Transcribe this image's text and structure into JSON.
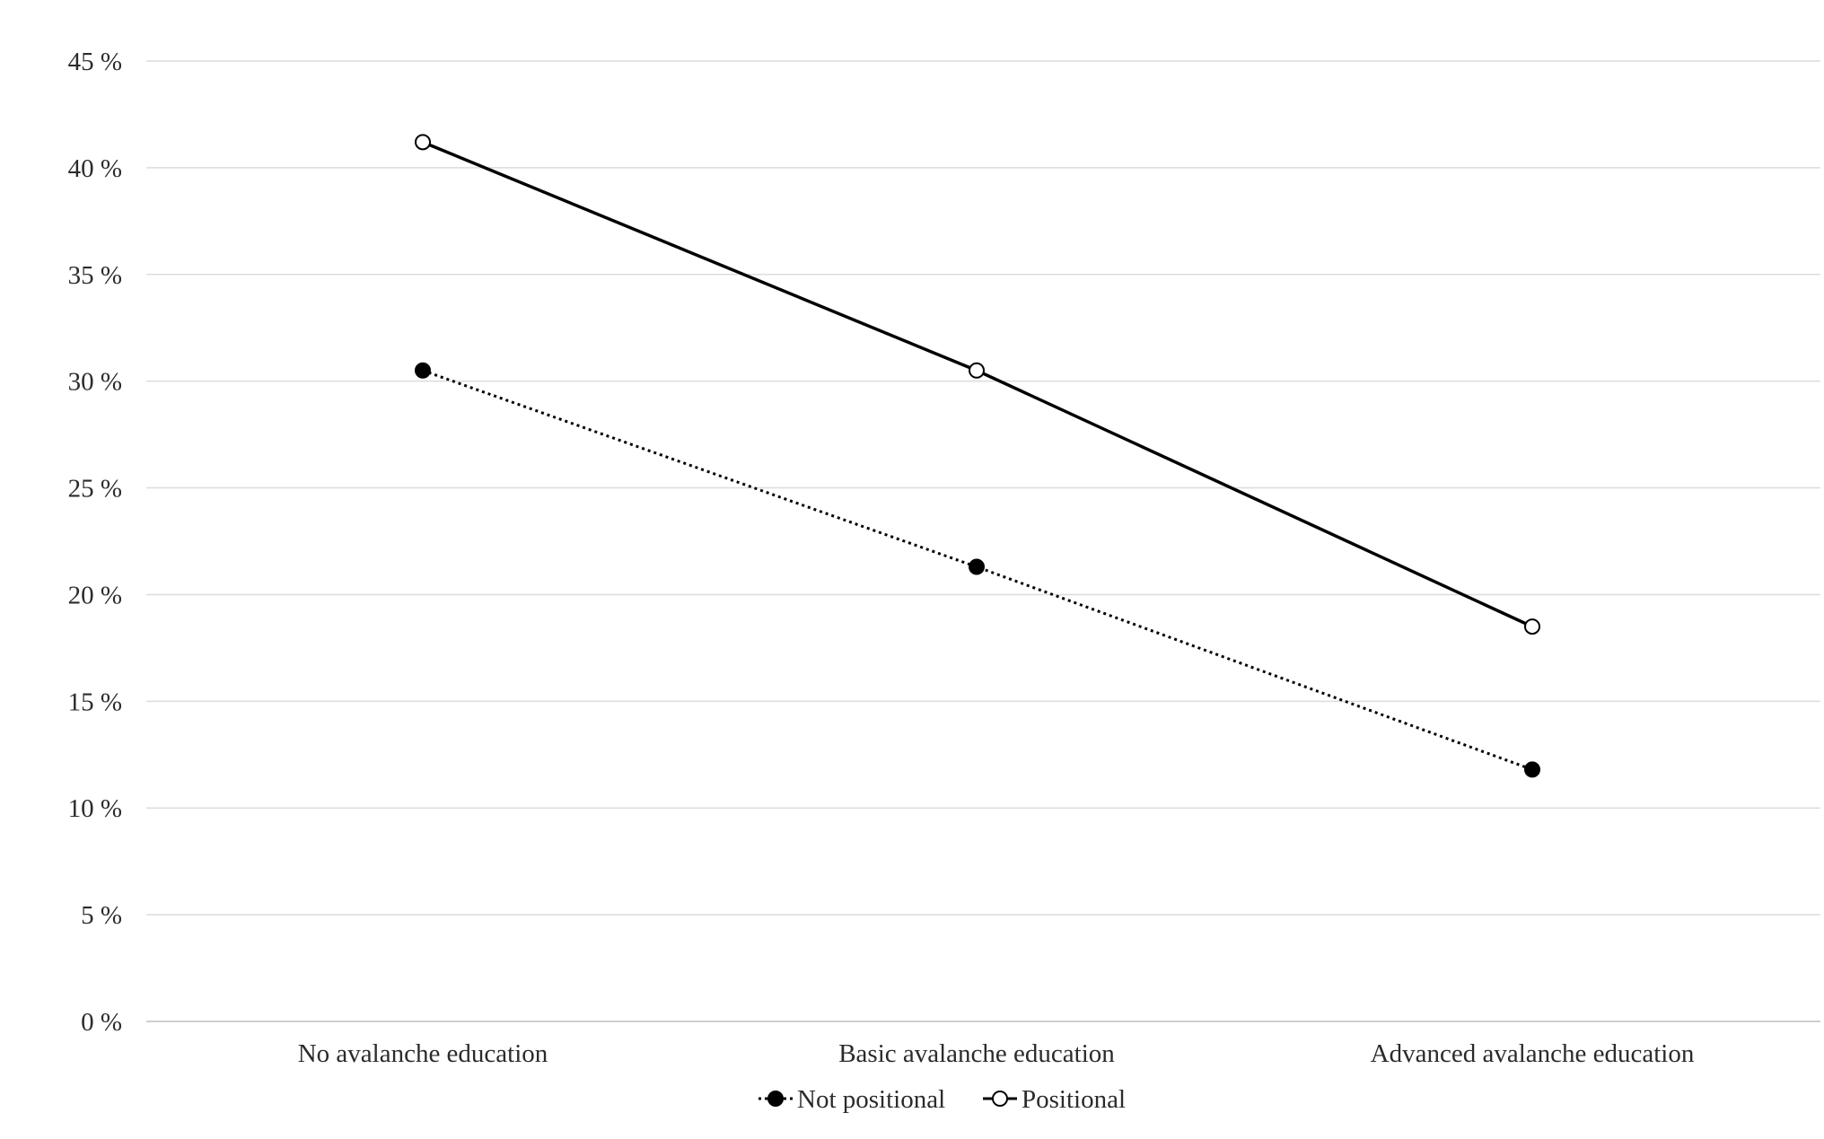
{
  "chart_data": {
    "type": "line",
    "title": "",
    "xlabel": "",
    "ylabel": "",
    "categories": [
      "No avalanche education",
      "Basic avalanche education",
      "Advanced avalanche education"
    ],
    "yticks": [
      "0 %",
      "5 %",
      "10 %",
      "15 %",
      "20 %",
      "25 %",
      "30 %",
      "35 %",
      "40 %",
      "45 %"
    ],
    "ylim": [
      0,
      45
    ],
    "grid": true,
    "legend_position": "bottom-center",
    "series": [
      {
        "name": "Not positional",
        "values": [
          30.5,
          21.3,
          11.8
        ],
        "line_style": "dotted",
        "marker": "filled-circle",
        "color": "#000000"
      },
      {
        "name": "Positional",
        "values": [
          41.2,
          30.5,
          18.5
        ],
        "line_style": "solid",
        "marker": "open-circle",
        "color": "#000000"
      }
    ]
  },
  "colors": {
    "grid": "#dcdcdc",
    "axis": "#cfcfcf",
    "text": "#2b2b2b",
    "series_line": "#000000",
    "background": "#ffffff"
  }
}
